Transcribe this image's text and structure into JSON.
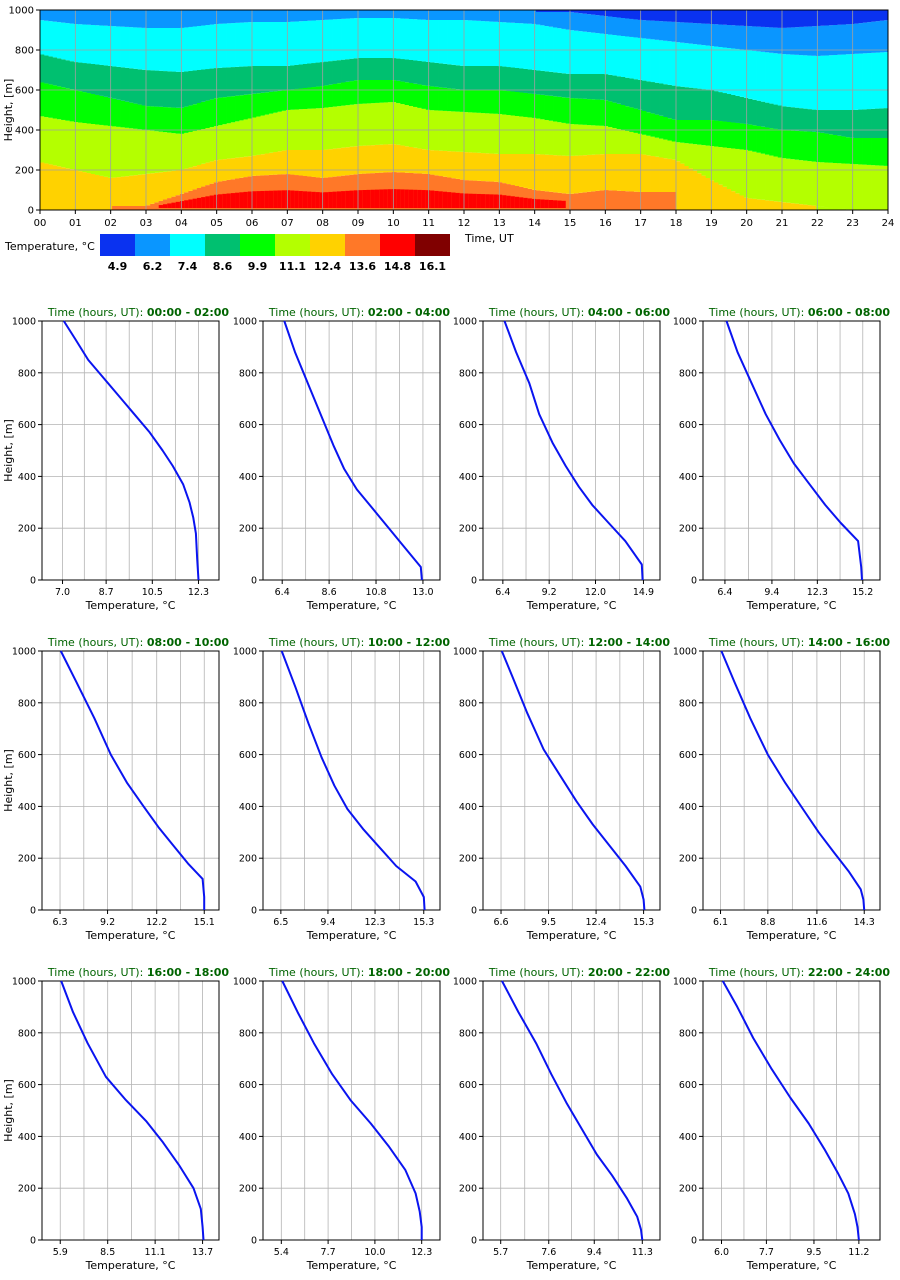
{
  "chart_data": [
    {
      "type": "heatmap",
      "xlabel": "Time, UT",
      "ylabel": "Height, [m]",
      "x_ticks": [
        "00",
        "01",
        "02",
        "03",
        "04",
        "05",
        "06",
        "07",
        "08",
        "09",
        "10",
        "11",
        "12",
        "13",
        "14",
        "15",
        "16",
        "17",
        "18",
        "19",
        "20",
        "21",
        "22",
        "23",
        "24"
      ],
      "xlim": [
        0,
        24
      ],
      "ylim": [
        0,
        1000
      ],
      "y_ticks": [
        0,
        200,
        400,
        600,
        800,
        1000
      ],
      "grid": true,
      "colorbar": {
        "label": "Temperature, °C",
        "colors": [
          "#0a32f0",
          "#0a96ff",
          "#00ffff",
          "#00c070",
          "#00ff00",
          "#b4ff00",
          "#ffd200",
          "#ff7828",
          "#ff0000",
          "#800000"
        ],
        "tick_labels": [
          "4.9",
          "6.2",
          "7.4",
          "8.6",
          "9.9",
          "11.1",
          "12.4",
          "13.6",
          "14.8",
          "16.1"
        ]
      },
      "band_boundaries_m": {
        "hours": [
          0,
          1,
          2,
          3,
          4,
          5,
          6,
          7,
          8,
          9,
          10,
          11,
          12,
          13,
          14,
          15,
          16,
          17,
          18,
          19,
          20,
          21,
          22,
          23,
          24
        ],
        "levels": [
          {
            "temp_threshold": "13.6",
            "values": [
              null,
              null,
              null,
              null,
              null,
              null,
              null,
              null,
              null,
              null,
              null,
              null,
              null,
              null,
              null,
              null,
              null,
              null,
              null,
              null,
              null,
              null,
              null,
              null,
              null
            ]
          },
          {
            "temp_threshold": "12.4",
            "values": [
              null,
              null,
              null,
              20,
              80,
              140,
              170,
              180,
              160,
              180,
              190,
              180,
              150,
              140,
              100,
              80,
              100,
              90,
              null,
              null,
              null,
              null,
              null,
              null,
              null
            ]
          },
          {
            "temp_threshold": "11.1",
            "values": [
              240,
              200,
              160,
              180,
              200,
              250,
              270,
              300,
              300,
              320,
              330,
              300,
              290,
              280,
              280,
              270,
              280,
              280,
              250,
              150,
              60,
              40,
              20,
              0,
              0
            ]
          },
          {
            "temp_threshold": "9.9",
            "values": [
              470,
              440,
              420,
              400,
              380,
              420,
              460,
              500,
              510,
              530,
              540,
              500,
              490,
              480,
              460,
              430,
              420,
              380,
              340,
              320,
              300,
              260,
              240,
              230,
              220
            ]
          },
          {
            "temp_threshold": "8.6",
            "values": [
              640,
              600,
              560,
              520,
              510,
              560,
              580,
              600,
              620,
              650,
              650,
              620,
              600,
              600,
              580,
              560,
              550,
              500,
              450,
              450,
              430,
              400,
              390,
              360,
              360
            ]
          },
          {
            "temp_threshold": "7.4",
            "values": [
              780,
              740,
              720,
              700,
              690,
              710,
              720,
              720,
              740,
              760,
              760,
              740,
              720,
              720,
              700,
              680,
              680,
              650,
              620,
              600,
              560,
              520,
              500,
              500,
              510
            ]
          },
          {
            "temp_threshold": "6.2",
            "values": [
              950,
              930,
              920,
              910,
              910,
              930,
              940,
              940,
              950,
              960,
              960,
              950,
              950,
              940,
              930,
              900,
              880,
              860,
              840,
              820,
              800,
              780,
              770,
              780,
              790
            ]
          },
          {
            "temp_threshold": "4.9",
            "values": [
              null,
              null,
              null,
              null,
              null,
              null,
              null,
              null,
              null,
              null,
              null,
              null,
              null,
              null,
              null,
              990,
              970,
              950,
              940,
              930,
              920,
              910,
              920,
              930,
              950
            ]
          }
        ]
      }
    },
    {
      "type": "line",
      "title_prefix": "Time (hours, UT):",
      "title_range": "00:00 - 02:00",
      "xlabel": "Temperature, °C",
      "ylabel": "Height, [m]",
      "x_ticks": [
        "7.0",
        "8.7",
        "10.5",
        "12.3"
      ],
      "xlim": [
        6.2,
        13.1
      ],
      "ylim": [
        0,
        1000
      ],
      "y_ticks": [
        0,
        200,
        400,
        600,
        800,
        1000
      ],
      "grid": true,
      "series": [
        {
          "x": [
            7.05,
            7.5,
            8.0,
            8.6,
            9.2,
            9.8,
            10.4,
            10.9,
            11.3,
            11.7,
            11.95,
            12.1,
            12.2,
            12.25,
            12.3
          ],
          "y": [
            1000,
            930,
            850,
            780,
            710,
            640,
            570,
            500,
            440,
            370,
            300,
            240,
            180,
            80,
            0
          ]
        }
      ]
    },
    {
      "type": "line",
      "title_prefix": "Time (hours, UT):",
      "title_range": "02:00 - 04:00",
      "xlabel": "Temperature, °C",
      "ylabel": "Height, [m]",
      "x_ticks": [
        "6.4",
        "8.6",
        "10.8",
        "13.0"
      ],
      "xlim": [
        5.5,
        13.8
      ],
      "ylim": [
        0,
        1000
      ],
      "y_ticks": [
        0,
        200,
        400,
        600,
        800,
        1000
      ],
      "grid": true,
      "series": [
        {
          "x": [
            6.5,
            7.0,
            7.6,
            8.2,
            8.8,
            9.3,
            9.9,
            10.6,
            11.3,
            12.0,
            12.9,
            12.95
          ],
          "y": [
            1000,
            880,
            760,
            640,
            520,
            430,
            350,
            280,
            210,
            140,
            50,
            0
          ]
        }
      ]
    },
    {
      "type": "line",
      "title_prefix": "Time (hours, UT):",
      "title_range": "04:00 - 06:00",
      "xlabel": "Temperature, °C",
      "ylabel": "Height, [m]",
      "x_ticks": [
        "6.4",
        "9.2",
        "12.0",
        "14.9"
      ],
      "xlim": [
        5.2,
        15.9
      ],
      "ylim": [
        0,
        1000
      ],
      "y_ticks": [
        0,
        200,
        400,
        600,
        800,
        1000
      ],
      "grid": true,
      "series": [
        {
          "x": [
            6.5,
            7.2,
            8.0,
            8.6,
            9.4,
            10.2,
            11.0,
            11.8,
            12.8,
            13.8,
            14.8,
            14.85
          ],
          "y": [
            1000,
            880,
            760,
            640,
            530,
            440,
            360,
            290,
            220,
            150,
            60,
            0
          ]
        }
      ]
    },
    {
      "type": "line",
      "title_prefix": "Time (hours, UT):",
      "title_range": "06:00 - 08:00",
      "xlabel": "Temperature, °C",
      "ylabel": "Height, [m]",
      "x_ticks": [
        "6.4",
        "9.4",
        "12.3",
        "15.2"
      ],
      "xlim": [
        5.0,
        16.3
      ],
      "ylim": [
        0,
        1000
      ],
      "y_ticks": [
        0,
        200,
        400,
        600,
        800,
        1000
      ],
      "grid": true,
      "series": [
        {
          "x": [
            6.5,
            7.2,
            8.1,
            9.0,
            9.9,
            10.8,
            11.8,
            12.8,
            13.8,
            14.9,
            15.1,
            15.15
          ],
          "y": [
            1000,
            880,
            760,
            640,
            540,
            450,
            370,
            290,
            220,
            150,
            50,
            0
          ]
        }
      ]
    },
    {
      "type": "line",
      "title_prefix": "Time (hours, UT):",
      "title_range": "08:00 - 10:00",
      "xlabel": "Temperature, °C",
      "ylabel": "Height, [m]",
      "x_ticks": [
        "6.3",
        "9.2",
        "12.2",
        "15.1"
      ],
      "xlim": [
        5.2,
        16.0
      ],
      "ylim": [
        0,
        1000
      ],
      "y_ticks": [
        0,
        200,
        400,
        600,
        800,
        1000
      ],
      "grid": true,
      "series": [
        {
          "x": [
            6.35,
            7.3,
            8.4,
            9.4,
            10.4,
            11.4,
            12.3,
            13.2,
            14.1,
            15.0,
            15.1,
            15.1
          ],
          "y": [
            1000,
            880,
            740,
            600,
            490,
            400,
            320,
            250,
            180,
            120,
            50,
            0
          ]
        }
      ]
    },
    {
      "type": "line",
      "title_prefix": "Time (hours, UT):",
      "title_range": "10:00 - 12:00",
      "xlabel": "Temperature, °C",
      "ylabel": "Height, [m]",
      "x_ticks": [
        "6.5",
        "9.4",
        "12.3",
        "15.3"
      ],
      "xlim": [
        5.4,
        16.3
      ],
      "ylim": [
        0,
        1000
      ],
      "y_ticks": [
        0,
        200,
        400,
        600,
        800,
        1000
      ],
      "grid": true,
      "series": [
        {
          "x": [
            6.55,
            7.4,
            8.2,
            9.0,
            9.8,
            10.6,
            11.6,
            12.6,
            13.6,
            14.8,
            15.3,
            15.35
          ],
          "y": [
            1000,
            860,
            720,
            590,
            480,
            390,
            310,
            240,
            170,
            110,
            50,
            0
          ]
        }
      ]
    },
    {
      "type": "line",
      "title_prefix": "Time (hours, UT):",
      "title_range": "12:00 - 14:00",
      "xlabel": "Temperature, °C",
      "ylabel": "Height, [m]",
      "x_ticks": [
        "6.6",
        "9.5",
        "12.4",
        "15.3"
      ],
      "xlim": [
        5.5,
        16.3
      ],
      "ylim": [
        0,
        1000
      ],
      "y_ticks": [
        0,
        200,
        400,
        600,
        800,
        1000
      ],
      "grid": true,
      "series": [
        {
          "x": [
            6.65,
            7.3,
            8.2,
            9.2,
            10.2,
            11.2,
            12.2,
            13.2,
            14.2,
            15.1,
            15.3,
            15.35
          ],
          "y": [
            1000,
            900,
            760,
            620,
            520,
            420,
            330,
            250,
            170,
            90,
            40,
            0
          ]
        }
      ]
    },
    {
      "type": "line",
      "title_prefix": "Time (hours, UT):",
      "title_range": "14:00 - 16:00",
      "xlabel": "Temperature, °C",
      "ylabel": "Height, [m]",
      "x_ticks": [
        "6.1",
        "8.8",
        "11.6",
        "14.3"
      ],
      "xlim": [
        5.1,
        15.2
      ],
      "ylim": [
        0,
        1000
      ],
      "y_ticks": [
        0,
        200,
        400,
        600,
        800,
        1000
      ],
      "grid": true,
      "series": [
        {
          "x": [
            6.15,
            6.9,
            7.8,
            8.8,
            9.8,
            10.8,
            11.7,
            12.6,
            13.4,
            14.1,
            14.25,
            14.3
          ],
          "y": [
            1000,
            880,
            740,
            600,
            490,
            390,
            300,
            220,
            150,
            80,
            40,
            0
          ]
        }
      ]
    },
    {
      "type": "line",
      "title_prefix": "Time (hours, UT):",
      "title_range": "16:00 - 18:00",
      "xlabel": "Temperature, °C",
      "ylabel": "Height, [m]",
      "x_ticks": [
        "5.9",
        "8.5",
        "11.1",
        "13.7"
      ],
      "xlim": [
        4.9,
        14.6
      ],
      "ylim": [
        0,
        1000
      ],
      "y_ticks": [
        0,
        200,
        400,
        600,
        800,
        1000
      ],
      "grid": true,
      "series": [
        {
          "x": [
            5.95,
            6.6,
            7.4,
            8.4,
            9.5,
            10.6,
            11.5,
            12.4,
            13.2,
            13.6,
            13.7,
            13.75
          ],
          "y": [
            1000,
            880,
            760,
            630,
            540,
            460,
            380,
            290,
            200,
            120,
            50,
            0
          ]
        }
      ]
    },
    {
      "type": "line",
      "title_prefix": "Time (hours, UT):",
      "title_range": "18:00 - 20:00",
      "xlabel": "Temperature, °C",
      "ylabel": "Height, [m]",
      "x_ticks": [
        "5.4",
        "7.7",
        "10.0",
        "12.3"
      ],
      "xlim": [
        4.5,
        13.2
      ],
      "ylim": [
        0,
        1000
      ],
      "y_ticks": [
        0,
        200,
        400,
        600,
        800,
        1000
      ],
      "grid": true,
      "series": [
        {
          "x": [
            5.45,
            6.2,
            7.0,
            7.9,
            8.8,
            9.8,
            10.7,
            11.5,
            12.0,
            12.2,
            12.3,
            12.3
          ],
          "y": [
            1000,
            880,
            760,
            640,
            540,
            450,
            360,
            270,
            180,
            110,
            50,
            0
          ]
        }
      ]
    },
    {
      "type": "line",
      "title_prefix": "Time (hours, UT):",
      "title_range": "20:00 - 22:00",
      "xlabel": "Temperature, °C",
      "ylabel": "Height, [m]",
      "x_ticks": [
        "5.7",
        "7.6",
        "9.4",
        "11.3"
      ],
      "xlim": [
        5.0,
        12.0
      ],
      "ylim": [
        0,
        1000
      ],
      "y_ticks": [
        0,
        200,
        400,
        600,
        800,
        1000
      ],
      "grid": true,
      "series": [
        {
          "x": [
            5.75,
            6.4,
            7.1,
            7.7,
            8.3,
            8.9,
            9.5,
            10.1,
            10.7,
            11.1,
            11.25,
            11.3
          ],
          "y": [
            1000,
            880,
            760,
            640,
            530,
            430,
            330,
            250,
            160,
            90,
            40,
            0
          ]
        }
      ]
    },
    {
      "type": "line",
      "title_prefix": "Time (hours, UT):",
      "title_range": "22:00 - 24:00",
      "xlabel": "Temperature, °C",
      "ylabel": "Height, [m]",
      "x_ticks": [
        "6.0",
        "7.7",
        "9.5",
        "11.2"
      ],
      "xlim": [
        5.3,
        12.0
      ],
      "ylim": [
        0,
        1000
      ],
      "y_ticks": [
        0,
        200,
        400,
        600,
        800,
        1000
      ],
      "grid": true,
      "series": [
        {
          "x": [
            6.05,
            6.6,
            7.2,
            7.9,
            8.6,
            9.3,
            9.9,
            10.4,
            10.8,
            11.05,
            11.15,
            11.2
          ],
          "y": [
            1000,
            900,
            780,
            660,
            550,
            450,
            350,
            260,
            180,
            100,
            50,
            0
          ]
        }
      ]
    }
  ]
}
